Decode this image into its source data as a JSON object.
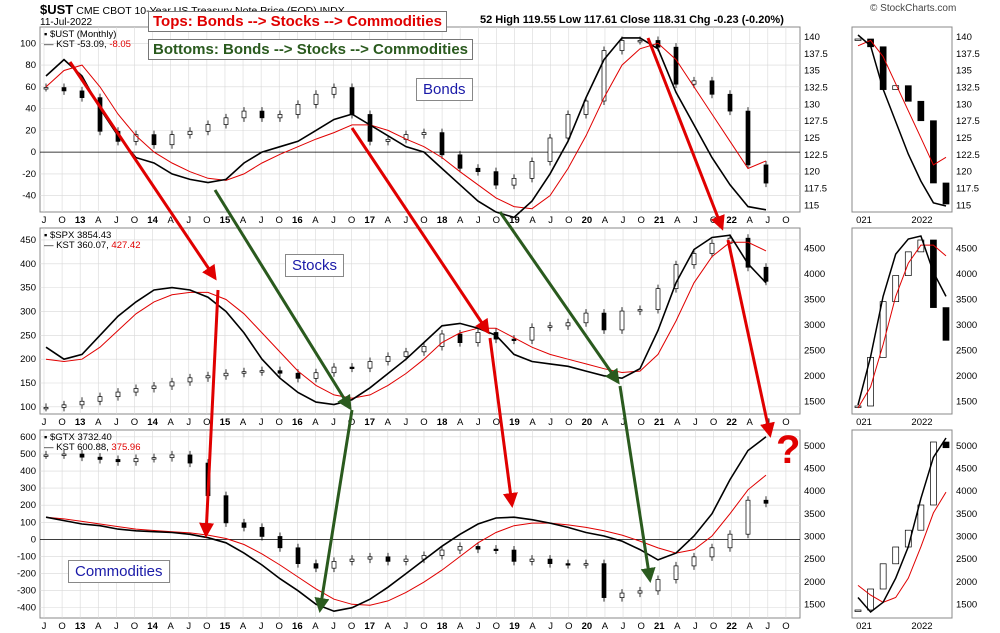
{
  "header": {
    "symbol": "$UST",
    "description": "CME CBOT 10-Year US Treasury Note Price (EOD) INDX",
    "date": "11-Jul-2022",
    "quote": "52 High 119.55 Low 117.61 Close 118.31 Chg -0.23 (-0.20%)",
    "watermark": "© StockCharts.com"
  },
  "annotations": {
    "tops": "Tops: Bonds --> Stocks --> Commodities",
    "bottoms": "Bottoms: Bonds --> Stocks --> Commodities",
    "question": "?",
    "tops_color": "#e00000",
    "bottoms_color": "#2a5a1e"
  },
  "panel_labels": {
    "bonds": "Bonds",
    "stocks": "Stocks",
    "commodities": "Commodities"
  },
  "legends": {
    "bonds": {
      "line1": "$UST (Monthly)",
      "kst": "KST -53.09,",
      "kst_sig": "-8.05"
    },
    "stocks": {
      "line1": "$SPX 3854.43",
      "kst": "KST 360.07,",
      "kst_sig": "427.42"
    },
    "commodities": {
      "line1": "$GTX 3732.40",
      "kst": "KST 600.88,",
      "kst_sig": "375.96"
    }
  },
  "x_axis": {
    "labels": [
      "J",
      "O",
      "13",
      "A",
      "J",
      "O",
      "14",
      "A",
      "J",
      "O",
      "15",
      "A",
      "J",
      "O",
      "16",
      "A",
      "J",
      "O",
      "17",
      "A",
      "J",
      "O",
      "18",
      "A",
      "J",
      "O",
      "19",
      "A",
      "J",
      "O",
      "20",
      "A",
      "J",
      "O",
      "21",
      "A",
      "J",
      "O",
      "22",
      "A",
      "J",
      "O"
    ],
    "side_labels": [
      "021",
      "2022"
    ]
  },
  "colors": {
    "kst": "#000000",
    "signal": "#e00000",
    "candle_up": "#ffffff",
    "candle_down": "#000000",
    "zero_line": "#000000",
    "grid": "#d8d8d8"
  },
  "chart_data": [
    {
      "type": "line",
      "name": "bonds",
      "title": "$UST (Monthly)",
      "x": [
        "2012-07",
        "2012-10",
        "2013-01",
        "2013-04",
        "2013-07",
        "2013-10",
        "2014-01",
        "2014-04",
        "2014-07",
        "2014-10",
        "2015-01",
        "2015-04",
        "2015-07",
        "2015-10",
        "2016-01",
        "2016-04",
        "2016-07",
        "2016-10",
        "2017-01",
        "2017-04",
        "2017-07",
        "2017-10",
        "2018-01",
        "2018-04",
        "2018-07",
        "2018-10",
        "2019-01",
        "2019-04",
        "2019-07",
        "2019-10",
        "2020-01",
        "2020-04",
        "2020-07",
        "2020-10",
        "2021-01",
        "2021-04",
        "2021-07",
        "2021-10",
        "2022-01",
        "2022-04",
        "2022-07"
      ],
      "price": [
        132.5,
        132,
        131,
        126,
        124.5,
        125.5,
        124,
        125.5,
        126,
        127,
        128,
        129,
        128,
        128.5,
        130,
        131.5,
        132.5,
        128.5,
        124.5,
        124.8,
        125.5,
        125.8,
        122.5,
        120.5,
        120,
        118,
        119,
        121.5,
        125,
        128.5,
        130.5,
        138,
        139.5,
        139.5,
        138.5,
        133,
        133.5,
        131.5,
        129,
        121,
        118.3
      ],
      "kst": [
        70,
        85,
        70,
        40,
        15,
        -5,
        -10,
        -20,
        -25,
        -28,
        -25,
        -10,
        0,
        5,
        10,
        20,
        30,
        35,
        25,
        15,
        5,
        0,
        -15,
        -30,
        -45,
        -55,
        -60,
        -45,
        -20,
        10,
        50,
        85,
        105,
        105,
        95,
        55,
        25,
        -5,
        -30,
        -50,
        -53
      ],
      "kst_signal": [
        60,
        75,
        80,
        60,
        35,
        15,
        0,
        -10,
        -18,
        -24,
        -26,
        -20,
        -10,
        -2,
        5,
        12,
        18,
        25,
        25,
        20,
        12,
        5,
        -5,
        -18,
        -30,
        -42,
        -50,
        -52,
        -40,
        -15,
        15,
        50,
        80,
        95,
        100,
        85,
        60,
        35,
        10,
        -15,
        -8
      ],
      "price_axis": [
        115,
        117.5,
        120,
        122.5,
        125,
        127.5,
        130,
        132.5,
        135,
        137.5,
        140
      ],
      "kst_axis": [
        -40,
        -20,
        0,
        20,
        40,
        60,
        80,
        100
      ]
    },
    {
      "type": "line",
      "name": "stocks",
      "title": "$SPX 3854.43",
      "x": [
        "2012-07",
        "2012-10",
        "2013-01",
        "2013-04",
        "2013-07",
        "2013-10",
        "2014-01",
        "2014-04",
        "2014-07",
        "2014-10",
        "2015-01",
        "2015-04",
        "2015-07",
        "2015-10",
        "2016-01",
        "2016-04",
        "2016-07",
        "2016-10",
        "2017-01",
        "2017-04",
        "2017-07",
        "2017-10",
        "2018-01",
        "2018-04",
        "2018-07",
        "2018-10",
        "2019-01",
        "2019-04",
        "2019-07",
        "2019-10",
        "2020-01",
        "2020-04",
        "2020-07",
        "2020-10",
        "2021-01",
        "2021-04",
        "2021-07",
        "2021-10",
        "2022-01",
        "2022-04",
        "2022-07"
      ],
      "price": [
        1380,
        1430,
        1500,
        1590,
        1680,
        1750,
        1800,
        1880,
        1960,
        2000,
        2050,
        2080,
        2100,
        2050,
        1950,
        2060,
        2170,
        2150,
        2280,
        2380,
        2470,
        2575,
        2820,
        2650,
        2850,
        2720,
        2700,
        2950,
        2980,
        3040,
        3230,
        2900,
        3270,
        3300,
        3710,
        4180,
        4400,
        4600,
        4700,
        4130,
        3854
      ],
      "kst": [
        225,
        200,
        210,
        250,
        290,
        320,
        345,
        350,
        345,
        330,
        300,
        255,
        200,
        160,
        130,
        110,
        105,
        115,
        140,
        170,
        200,
        235,
        270,
        275,
        265,
        250,
        210,
        195,
        190,
        185,
        175,
        165,
        160,
        180,
        260,
        360,
        430,
        455,
        460,
        400,
        360
      ],
      "kst_signal": [
        200,
        195,
        200,
        225,
        260,
        295,
        320,
        335,
        340,
        340,
        325,
        295,
        255,
        215,
        175,
        145,
        125,
        118,
        125,
        145,
        170,
        200,
        235,
        255,
        265,
        265,
        245,
        225,
        210,
        200,
        190,
        180,
        172,
        175,
        210,
        280,
        360,
        415,
        445,
        445,
        427
      ],
      "price_axis": [
        1500,
        2000,
        2500,
        3000,
        3500,
        4000,
        4500
      ],
      "kst_axis": [
        100,
        150,
        200,
        250,
        300,
        350,
        400,
        450
      ]
    },
    {
      "type": "line",
      "name": "commodities",
      "title": "$GTX 3732.40",
      "x": [
        "2012-07",
        "2012-10",
        "2013-01",
        "2013-04",
        "2013-07",
        "2013-10",
        "2014-01",
        "2014-04",
        "2014-07",
        "2014-10",
        "2015-01",
        "2015-04",
        "2015-07",
        "2015-10",
        "2016-01",
        "2016-04",
        "2016-07",
        "2016-10",
        "2017-01",
        "2017-04",
        "2017-07",
        "2017-10",
        "2018-01",
        "2018-04",
        "2018-07",
        "2018-10",
        "2019-01",
        "2019-04",
        "2019-07",
        "2019-10",
        "2020-01",
        "2020-04",
        "2020-07",
        "2020-10",
        "2021-01",
        "2021-04",
        "2021-07",
        "2021-10",
        "2022-01",
        "2022-04",
        "2022-07"
      ],
      "price": [
        4800,
        4820,
        4750,
        4700,
        4650,
        4720,
        4740,
        4800,
        4620,
        3900,
        3300,
        3200,
        3000,
        2750,
        2400,
        2300,
        2450,
        2500,
        2550,
        2450,
        2500,
        2580,
        2700,
        2780,
        2720,
        2700,
        2450,
        2500,
        2400,
        2380,
        2400,
        1650,
        1750,
        1800,
        2050,
        2350,
        2550,
        2750,
        3050,
        3800,
        3732
      ],
      "kst": [
        130,
        110,
        90,
        80,
        60,
        50,
        45,
        40,
        30,
        10,
        -20,
        -80,
        -150,
        -230,
        -300,
        -380,
        -420,
        -400,
        -350,
        -280,
        -200,
        -120,
        -40,
        30,
        90,
        125,
        130,
        115,
        95,
        70,
        40,
        20,
        -10,
        -60,
        -120,
        -80,
        20,
        150,
        350,
        520,
        600
      ],
      "kst_signal": [
        130,
        120,
        105,
        90,
        75,
        60,
        52,
        45,
        38,
        25,
        5,
        -30,
        -85,
        -150,
        -220,
        -290,
        -350,
        -380,
        -385,
        -360,
        -310,
        -250,
        -180,
        -100,
        -20,
        40,
        80,
        95,
        95,
        85,
        70,
        50,
        25,
        -10,
        -50,
        -80,
        -60,
        20,
        150,
        290,
        376
      ],
      "price_axis": [
        1500,
        2000,
        2500,
        3000,
        3500,
        4000,
        4500,
        5000
      ],
      "kst_axis": [
        -400,
        -300,
        -200,
        -100,
        0,
        100,
        200,
        300,
        400,
        500,
        600
      ]
    }
  ]
}
